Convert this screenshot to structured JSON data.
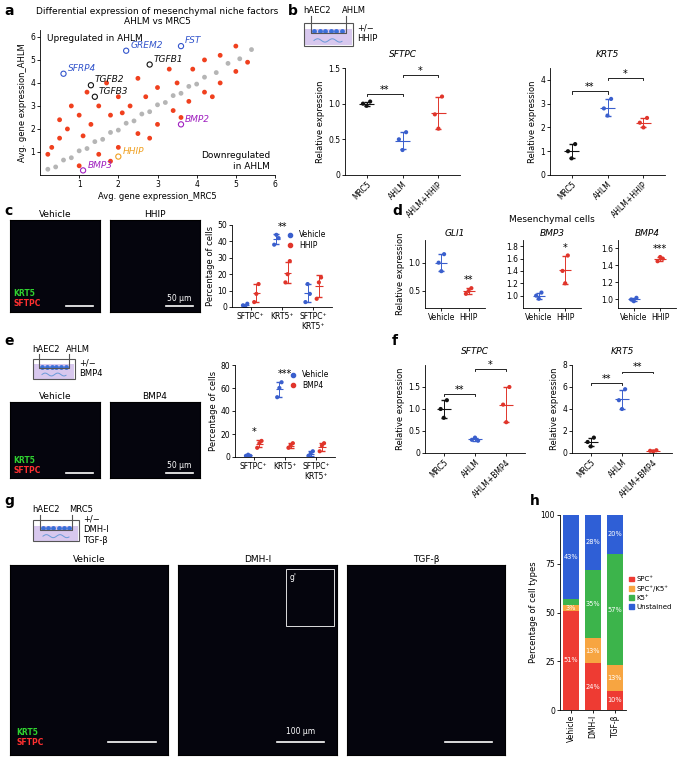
{
  "chart_data": [
    {
      "type": "scatter",
      "panel": "a",
      "title": "Differential expression of mesenchymal niche factors\nAHLM vs MRC5",
      "xlabel": "Avg. gene expression_MRC5",
      "ylabel": "Avg. gene expression_AHLM",
      "xlim": [
        0,
        6
      ],
      "xticks": [
        1,
        2,
        3,
        4,
        5,
        6
      ],
      "ylim": [
        0,
        6.3
      ],
      "yticks": [
        1,
        2,
        3,
        4,
        5,
        6
      ],
      "annotations": [
        "Upregulated in AHLM",
        "Downregulated\nin AHLM"
      ],
      "series": [
        {
          "color": "#b5b5b5",
          "x": [
            0.2,
            0.4,
            0.6,
            0.8,
            1.0,
            1.2,
            1.4,
            1.6,
            1.8,
            2.0,
            2.2,
            2.4,
            2.6,
            2.8,
            3.0,
            3.2,
            3.4,
            3.6,
            3.8,
            4.0,
            4.2,
            4.5,
            4.8,
            5.1,
            5.4
          ],
          "y": [
            0.25,
            0.35,
            0.65,
            0.75,
            1.05,
            1.15,
            1.45,
            1.55,
            1.85,
            1.95,
            2.25,
            2.35,
            2.65,
            2.75,
            3.05,
            3.15,
            3.45,
            3.55,
            3.85,
            3.95,
            4.25,
            4.45,
            4.85,
            5.05,
            5.45
          ]
        },
        {
          "color": "#f0401e",
          "x": [
            0.3,
            0.5,
            0.5,
            0.7,
            0.8,
            1.0,
            1.2,
            1.3,
            1.5,
            1.7,
            1.8,
            2.0,
            2.3,
            2.5,
            2.7,
            3.0,
            3.3,
            3.5,
            3.9,
            4.2,
            4.6,
            5.0,
            0.2,
            1.1,
            2.1,
            1.0,
            1.5,
            2.0,
            2.5,
            3.0,
            3.4,
            3.8,
            4.2,
            4.6,
            5.0,
            2.8,
            1.8,
            3.6,
            4.4,
            5.3
          ],
          "y": [
            1.2,
            1.6,
            2.4,
            2.0,
            3.0,
            2.6,
            3.6,
            2.2,
            3.0,
            4.0,
            2.6,
            3.4,
            3.0,
            4.2,
            3.4,
            3.8,
            4.6,
            4.0,
            4.6,
            5.0,
            5.2,
            5.6,
            0.9,
            1.7,
            2.7,
            0.4,
            0.9,
            1.2,
            1.8,
            2.2,
            2.8,
            3.2,
            3.6,
            4.0,
            4.5,
            1.6,
            0.6,
            2.5,
            3.4,
            4.9
          ]
        }
      ],
      "genes": [
        {
          "name": "SFRP4",
          "x": 0.6,
          "y": 4.4,
          "color": "#3355cc"
        },
        {
          "name": "GREM2",
          "x": 2.2,
          "y": 5.4,
          "color": "#3355cc"
        },
        {
          "name": "FST",
          "x": 3.6,
          "y": 5.6,
          "color": "#3355cc"
        },
        {
          "name": "TGFB1",
          "x": 2.8,
          "y": 4.8,
          "color": "#111111"
        },
        {
          "name": "TGFB2",
          "x": 1.3,
          "y": 3.9,
          "color": "#111111"
        },
        {
          "name": "TGFB3",
          "x": 1.4,
          "y": 3.4,
          "color": "#111111"
        },
        {
          "name": "BMP2",
          "x": 3.6,
          "y": 2.2,
          "color": "#a020c0"
        },
        {
          "name": "HHIP",
          "x": 2.0,
          "y": 0.8,
          "color": "#f0a020"
        },
        {
          "name": "BMP3",
          "x": 1.1,
          "y": 0.2,
          "color": "#a020c0"
        }
      ]
    },
    {
      "type": "schematic",
      "panel": "b",
      "cells": "hAEC2",
      "niche": "AHLM",
      "treatment": "+/−\nHHIP"
    },
    {
      "type": "dot",
      "title": "SFTPC",
      "ylabel": "Relative expression",
      "categories": [
        "MRC5",
        "AHLM",
        "AHLM+HHIP"
      ],
      "colors": [
        "#111111",
        "#3a5fcd",
        "#e0352b"
      ],
      "values": [
        [
          1.0,
          0.97,
          1.03
        ],
        [
          0.5,
          0.35,
          0.6
        ],
        [
          0.85,
          0.65,
          1.1
        ]
      ],
      "ylim": [
        0,
        1.5
      ],
      "yticks": [
        0,
        0.5,
        {
          "value": 1,
          "label": "1.0"
        },
        1.5
      ],
      "significance": [
        {
          "pair": [
            0,
            1
          ],
          "label": "**"
        },
        {
          "pair": [
            1,
            2
          ],
          "label": "*"
        }
      ]
    },
    {
      "type": "dot",
      "title": "KRT5",
      "ylabel": "Relative expression",
      "categories": [
        "MRC5",
        "AHLM",
        "AHLM+HHIP"
      ],
      "colors": [
        "#111111",
        "#3a5fcd",
        "#e0352b"
      ],
      "values": [
        [
          1.0,
          0.7,
          1.3
        ],
        [
          2.8,
          2.5,
          3.2
        ],
        [
          2.2,
          2.0,
          2.4
        ]
      ],
      "ylim": [
        0,
        4.5
      ],
      "yticks": [
        0,
        1,
        2,
        3,
        4
      ],
      "significance": [
        {
          "pair": [
            0,
            1
          ],
          "label": "**"
        },
        {
          "pair": [
            1,
            2
          ],
          "label": "*"
        }
      ]
    },
    {
      "type": "image",
      "panel": "c",
      "panels": [
        {
          "title": "Vehicle"
        },
        {
          "title": "HHIP",
          "scale_bar": "50 μm"
        }
      ],
      "channels": [
        {
          "name": "KRT5",
          "color": "#2fd12f"
        },
        {
          "name": "SFTPC",
          "color": "#ff3030"
        }
      ]
    },
    {
      "type": "grouped_dot",
      "ylabel": "Percentage of cells",
      "legend": "upper right",
      "categories": [
        "SFTPC⁺",
        "KRT5⁺",
        "SFTPC⁺\nKRT5⁺"
      ],
      "series": [
        {
          "name": "Vehicle",
          "color": "#3a5fcd",
          "values": [
            [
              1,
              0,
              2
            ],
            [
              38,
              44,
              42
            ],
            [
              3,
              14,
              8
            ]
          ]
        },
        {
          "name": "HHIP",
          "color": "#e0352b",
          "values": [
            [
              3,
              8,
              14
            ],
            [
              15,
              20,
              28
            ],
            [
              5,
              15,
              18
            ]
          ]
        }
      ],
      "stars": [
        null,
        "**",
        null
      ],
      "ylim": [
        0,
        50
      ],
      "yticks": [
        0,
        10,
        20,
        30,
        40,
        50
      ]
    },
    {
      "type": "dot",
      "panel": "d",
      "title": "GLI1",
      "ylabel": "Relative expression",
      "categories": [
        "Vehicle",
        "HHIP"
      ],
      "colors": [
        "#3a5fcd",
        "#e0352b"
      ],
      "values": [
        [
          1.0,
          0.85,
          1.15
        ],
        [
          0.45,
          0.5,
          0.55
        ]
      ],
      "stars": [
        null,
        "**"
      ],
      "ylim": [
        0.2,
        1.4
      ],
      "yticks": [
        0.5,
        {
          "value": 1,
          "label": "1.0"
        }
      ]
    },
    {
      "type": "dot",
      "title": "BMP3",
      "header": "Mesenchymal cells",
      "categories": [
        "Vehicle",
        "HHIP"
      ],
      "colors": [
        "#3a5fcd",
        "#e0352b"
      ],
      "values": [
        [
          1.0,
          0.95,
          1.05
        ],
        [
          1.4,
          1.2,
          1.65
        ]
      ],
      "stars": [
        null,
        "*"
      ],
      "ylim": [
        0.8,
        1.9
      ],
      "yticks": [
        {
          "value": 1,
          "label": "1.0"
        },
        1.2,
        1.4,
        1.6,
        1.8
      ]
    },
    {
      "type": "dot",
      "title": "BMP4",
      "categories": [
        "Vehicle",
        "HHIP"
      ],
      "colors": [
        "#3a5fcd",
        "#e0352b"
      ],
      "values": [
        [
          1.0,
          0.98,
          1.02
        ],
        [
          1.45,
          1.5,
          1.48
        ]
      ],
      "stars": [
        null,
        "***"
      ],
      "ylim": [
        0.9,
        1.7
      ],
      "yticks": [
        {
          "value": 1,
          "label": "1.0"
        },
        1.2,
        1.4,
        1.6
      ]
    },
    {
      "type": "schematic",
      "panel": "e",
      "cells": "hAEC2",
      "niche": "AHLM",
      "treatment": "+/−\nBMP4"
    },
    {
      "type": "image",
      "panels": [
        {
          "title": "Vehicle"
        },
        {
          "title": "BMP4",
          "scale_bar": "50 μm"
        }
      ],
      "channels": [
        {
          "name": "KRT5",
          "color": "#2fd12f"
        },
        {
          "name": "SFTPC",
          "color": "#ff3030"
        }
      ]
    },
    {
      "type": "grouped_dot",
      "ylabel": "Percentage of cells",
      "legend": "upper right",
      "categories": [
        "SFTPC⁺",
        "KRT5⁺",
        "SFTPC⁺\nKRT5⁺"
      ],
      "series": [
        {
          "name": "Vehicle",
          "color": "#3a5fcd",
          "values": [
            [
              1,
              2,
              1
            ],
            [
              52,
              60,
              65
            ],
            [
              1,
              3,
              5
            ]
          ]
        },
        {
          "name": "BMP4",
          "color": "#e0352b",
          "values": [
            [
              8,
              12,
              14
            ],
            [
              8,
              10,
              12
            ],
            [
              5,
              10,
              12
            ]
          ]
        }
      ],
      "stars": [
        "*",
        "***",
        null
      ],
      "ylim": [
        0,
        80
      ],
      "yticks": [
        0,
        20,
        40,
        60,
        80
      ]
    },
    {
      "type": "dot",
      "panel": "f",
      "title": "SFTPC",
      "ylabel": "Relative expression",
      "categories": [
        "MRC5",
        "AHLM",
        "AHLM+BMP4"
      ],
      "colors": [
        "#111111",
        "#3a5fcd",
        "#e0352b"
      ],
      "values": [
        [
          1.0,
          0.8,
          1.2
        ],
        [
          0.3,
          0.35,
          0.28
        ],
        [
          1.1,
          0.7,
          1.5
        ]
      ],
      "ylim": [
        0,
        2
      ],
      "yticks": [
        0,
        0.5,
        {
          "value": 1,
          "label": "1.0"
        },
        1.5
      ],
      "significance": [
        {
          "pair": [
            0,
            1
          ],
          "label": "**"
        },
        {
          "pair": [
            1,
            2
          ],
          "label": "*"
        }
      ]
    },
    {
      "type": "dot",
      "title": "KRT5",
      "ylabel": "Relative expression",
      "categories": [
        "MRC5",
        "AHLM",
        "AHLM+BMP4"
      ],
      "colors": [
        "#111111",
        "#3a5fcd",
        "#e0352b"
      ],
      "values": [
        [
          1.0,
          0.6,
          1.4
        ],
        [
          4.8,
          4.0,
          5.8
        ],
        [
          0.2,
          0.15,
          0.25
        ]
      ],
      "ylim": [
        0,
        8
      ],
      "yticks": [
        0,
        2,
        4,
        6,
        8
      ],
      "significance": [
        {
          "pair": [
            0,
            1
          ],
          "label": "**"
        },
        {
          "pair": [
            1,
            2
          ],
          "label": "**"
        }
      ]
    },
    {
      "type": "schematic",
      "panel": "g",
      "cells": "hAEC2",
      "niche": "MRC5",
      "treatment": "+/−\nDMH-I\nTGF-β"
    },
    {
      "type": "image",
      "panels": [
        {
          "title": "Vehicle"
        },
        {
          "title": "DMH-I",
          "scale_bar": "100 μm",
          "inset": "g'"
        },
        {
          "title": "TGF-β"
        }
      ],
      "channels": [
        {
          "name": "KRT5",
          "color": "#2fd12f"
        },
        {
          "name": "SFTPC",
          "color": "#ff3030"
        }
      ]
    },
    {
      "type": "bar",
      "panel": "h",
      "stacked": true,
      "data_labels": true,
      "legend": "right",
      "ylabel": "Percentage of cell types",
      "categories": [
        "Vehicle",
        "DMH-I",
        "TGF-β"
      ],
      "series": [
        {
          "name": "SPC⁺",
          "color": "#ee3b33",
          "values": [
            51,
            24,
            10
          ],
          "value_labels": [
            "51%",
            "24%",
            "10%"
          ]
        },
        {
          "name": "SPC⁺/K5⁺",
          "color": "#f7a541",
          "values": [
            3,
            13,
            13
          ],
          "value_labels": [
            "3%",
            "13%",
            "13%"
          ]
        },
        {
          "name": "K5⁺",
          "color": "#3cb44b",
          "values": [
            3,
            35,
            57
          ],
          "value_labels": [
            null,
            "35%",
            "57%"
          ]
        },
        {
          "name": "Unstained",
          "color": "#2f5fd6",
          "values": [
            43,
            28,
            20
          ],
          "value_labels": [
            "43%",
            "28%",
            "20%"
          ]
        }
      ],
      "ylim": [
        0,
        100
      ],
      "yticks": [
        0,
        25,
        50,
        75,
        100
      ]
    }
  ]
}
